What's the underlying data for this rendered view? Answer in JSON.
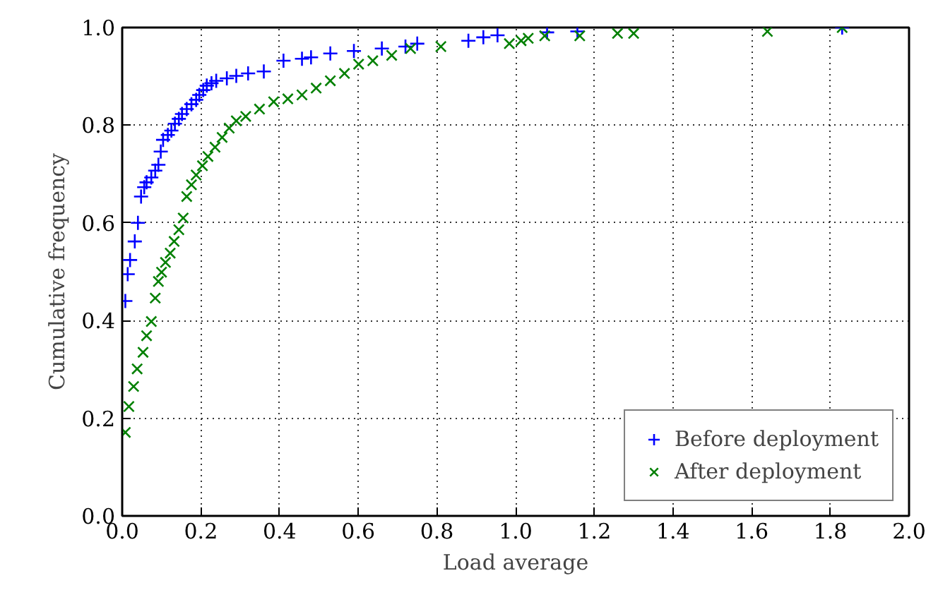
{
  "chart_data": {
    "type": "scatter",
    "xlabel": "Load average",
    "ylabel": "Cumulative frequency",
    "xlim": [
      0.0,
      2.0
    ],
    "ylim": [
      0.0,
      1.0
    ],
    "xticks": [
      {
        "value": 0.0,
        "label": "0.0"
      },
      0.2,
      0.4,
      0.6,
      0.8,
      {
        "value": 1.0,
        "label": "1.0"
      },
      1.2,
      1.4,
      1.6,
      1.8,
      {
        "value": 2.0,
        "label": "2.0"
      }
    ],
    "yticks": [
      {
        "value": 0.0,
        "label": "0.0"
      },
      0.2,
      0.4,
      0.6,
      0.8,
      {
        "value": 1.0,
        "label": "1.0"
      }
    ],
    "grid": true,
    "legend": "bottom right",
    "series": [
      {
        "name": "Before deployment",
        "color": "#0000ff",
        "marker": "cross",
        "x": [
          0.008,
          0.014,
          0.02,
          0.032,
          0.04,
          0.048,
          0.056,
          0.062,
          0.074,
          0.084,
          0.092,
          0.098,
          0.104,
          0.116,
          0.125,
          0.134,
          0.144,
          0.152,
          0.164,
          0.176,
          0.188,
          0.196,
          0.206,
          0.215,
          0.227,
          0.239,
          0.266,
          0.29,
          0.32,
          0.36,
          0.41,
          0.457,
          0.48,
          0.529,
          0.589,
          0.66,
          0.72,
          0.75,
          0.88,
          0.918,
          0.954,
          1.08,
          1.157,
          1.83
        ],
        "values": [
          0.44,
          0.495,
          0.524,
          0.562,
          0.6,
          0.654,
          0.673,
          0.683,
          0.693,
          0.707,
          0.719,
          0.746,
          0.77,
          0.78,
          0.789,
          0.803,
          0.813,
          0.823,
          0.833,
          0.843,
          0.852,
          0.862,
          0.872,
          0.881,
          0.886,
          0.891,
          0.896,
          0.901,
          0.906,
          0.91,
          0.932,
          0.936,
          0.939,
          0.947,
          0.952,
          0.957,
          0.961,
          0.967,
          0.973,
          0.98,
          0.984,
          0.99,
          0.992,
          1.0
        ]
      },
      {
        "name": "After deployment",
        "color": "#008000",
        "marker": "x",
        "x": [
          0.008,
          0.017,
          0.029,
          0.038,
          0.053,
          0.062,
          0.074,
          0.084,
          0.092,
          0.1,
          0.11,
          0.122,
          0.132,
          0.144,
          0.155,
          0.164,
          0.176,
          0.188,
          0.204,
          0.218,
          0.236,
          0.254,
          0.272,
          0.29,
          0.314,
          0.349,
          0.385,
          0.421,
          0.457,
          0.493,
          0.529,
          0.565,
          0.601,
          0.637,
          0.685,
          0.733,
          0.81,
          0.984,
          1.014,
          1.032,
          1.074,
          1.163,
          1.259,
          1.3,
          1.64,
          1.83
        ],
        "values": [
          0.171,
          0.224,
          0.265,
          0.301,
          0.335,
          0.369,
          0.398,
          0.446,
          0.48,
          0.499,
          0.519,
          0.538,
          0.562,
          0.586,
          0.61,
          0.654,
          0.678,
          0.698,
          0.717,
          0.736,
          0.755,
          0.775,
          0.794,
          0.809,
          0.818,
          0.833,
          0.848,
          0.854,
          0.862,
          0.876,
          0.891,
          0.906,
          0.925,
          0.932,
          0.943,
          0.957,
          0.961,
          0.967,
          0.973,
          0.978,
          0.983,
          0.983,
          0.988,
          0.988,
          0.992,
          1.0
        ]
      }
    ]
  }
}
